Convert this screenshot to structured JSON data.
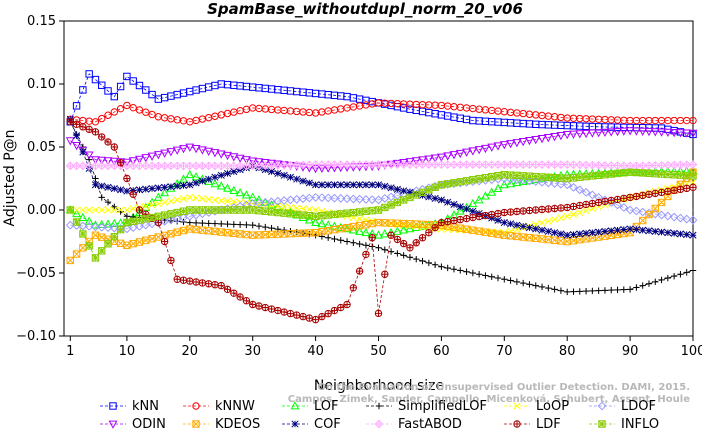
{
  "chart_data": {
    "type": "line",
    "title": "SpamBase_withoutdupl_norm_20_v06",
    "xlabel": "Neighborhood size",
    "ylabel": "Adjusted P@n",
    "xlim": [
      0,
      100
    ],
    "ylim": [
      -0.1,
      0.15
    ],
    "xticks": [
      1,
      10,
      20,
      30,
      40,
      50,
      60,
      70,
      80,
      90,
      100
    ],
    "yticks": [
      -0.1,
      -0.05,
      0.0,
      0.05,
      0.1,
      0.15
    ],
    "ytick_labels": [
      "−0.10",
      "−0.05",
      "0.00",
      "0.05",
      "0.10",
      "0.15"
    ],
    "watermark": [
      "Campos, Zimek, Sander, Campello, Micenková, Schubert, Assent, Houle",
      "On the Evaluation of Unsupervised Outlier Detection. DAMI, 2015."
    ],
    "legend_position": "bottom",
    "series": [
      {
        "name": "kNN",
        "color": "#0000ff",
        "marker": "square",
        "points": [
          [
            1,
            0.07
          ],
          [
            4,
            0.108
          ],
          [
            8,
            0.09
          ],
          [
            10,
            0.106
          ],
          [
            15,
            0.088
          ],
          [
            25,
            0.1
          ],
          [
            35,
            0.095
          ],
          [
            45,
            0.09
          ],
          [
            55,
            0.08
          ],
          [
            65,
            0.071
          ],
          [
            75,
            0.068
          ],
          [
            85,
            0.066
          ],
          [
            95,
            0.065
          ],
          [
            100,
            0.06
          ]
        ]
      },
      {
        "name": "kNNW",
        "color": "#ff0000",
        "marker": "circle",
        "points": [
          [
            1,
            0.072
          ],
          [
            5,
            0.07
          ],
          [
            10,
            0.083
          ],
          [
            15,
            0.074
          ],
          [
            20,
            0.07
          ],
          [
            30,
            0.081
          ],
          [
            40,
            0.077
          ],
          [
            50,
            0.085
          ],
          [
            60,
            0.083
          ],
          [
            70,
            0.078
          ],
          [
            80,
            0.073
          ],
          [
            90,
            0.071
          ],
          [
            100,
            0.071
          ]
        ]
      },
      {
        "name": "LOF",
        "color": "#00ff00",
        "marker": "triangle-up",
        "points": [
          [
            1,
            0.0
          ],
          [
            5,
            -0.012
          ],
          [
            10,
            -0.01
          ],
          [
            15,
            0.01
          ],
          [
            20,
            0.028
          ],
          [
            30,
            0.01
          ],
          [
            40,
            -0.01
          ],
          [
            50,
            -0.02
          ],
          [
            60,
            -0.01
          ],
          [
            70,
            0.02
          ],
          [
            80,
            0.028
          ],
          [
            90,
            0.03
          ],
          [
            100,
            0.031
          ]
        ]
      },
      {
        "name": "SimplifiedLOF",
        "color": "#000000",
        "marker": "plus",
        "points": [
          [
            1,
            0.07
          ],
          [
            4,
            0.04
          ],
          [
            6,
            0.01
          ],
          [
            10,
            -0.005
          ],
          [
            20,
            -0.01
          ],
          [
            30,
            -0.012
          ],
          [
            40,
            -0.02
          ],
          [
            50,
            -0.03
          ],
          [
            60,
            -0.045
          ],
          [
            70,
            -0.055
          ],
          [
            80,
            -0.065
          ],
          [
            90,
            -0.063
          ],
          [
            100,
            -0.048
          ]
        ]
      },
      {
        "name": "LoOP",
        "color": "#ffff00",
        "marker": "x",
        "points": [
          [
            1,
            0.0
          ],
          [
            10,
            0.0
          ],
          [
            20,
            0.01
          ],
          [
            30,
            0.005
          ],
          [
            40,
            0.0
          ],
          [
            50,
            -0.01
          ],
          [
            60,
            -0.015
          ],
          [
            70,
            -0.018
          ],
          [
            80,
            -0.005
          ],
          [
            90,
            0.01
          ],
          [
            100,
            0.022
          ]
        ]
      },
      {
        "name": "LDOF",
        "color": "#9999ff",
        "marker": "diamond",
        "points": [
          [
            1,
            -0.012
          ],
          [
            10,
            -0.015
          ],
          [
            20,
            -0.005
          ],
          [
            30,
            0.005
          ],
          [
            40,
            0.01
          ],
          [
            50,
            0.008
          ],
          [
            60,
            0.02
          ],
          [
            70,
            0.025
          ],
          [
            80,
            0.02
          ],
          [
            90,
            0.0
          ],
          [
            100,
            -0.008
          ]
        ]
      },
      {
        "name": "ODIN",
        "color": "#aa00ff",
        "marker": "triangle-down",
        "points": [
          [
            1,
            0.055
          ],
          [
            5,
            0.04
          ],
          [
            10,
            0.038
          ],
          [
            20,
            0.05
          ],
          [
            30,
            0.039
          ],
          [
            40,
            0.033
          ],
          [
            50,
            0.035
          ],
          [
            60,
            0.042
          ],
          [
            70,
            0.052
          ],
          [
            80,
            0.06
          ],
          [
            90,
            0.063
          ],
          [
            100,
            0.061
          ]
        ]
      },
      {
        "name": "KDEOS",
        "color": "#ffaa00",
        "marker": "box-x",
        "points": [
          [
            1,
            -0.04
          ],
          [
            5,
            -0.02
          ],
          [
            10,
            -0.028
          ],
          [
            20,
            -0.015
          ],
          [
            30,
            -0.02
          ],
          [
            40,
            -0.018
          ],
          [
            50,
            -0.01
          ],
          [
            60,
            -0.012
          ],
          [
            70,
            -0.02
          ],
          [
            80,
            -0.025
          ],
          [
            90,
            -0.018
          ],
          [
            100,
            0.03
          ]
        ]
      },
      {
        "name": "COF",
        "color": "#000080",
        "marker": "asterisk",
        "points": [
          [
            1,
            0.072
          ],
          [
            5,
            0.02
          ],
          [
            10,
            0.015
          ],
          [
            20,
            0.02
          ],
          [
            30,
            0.035
          ],
          [
            40,
            0.02
          ],
          [
            50,
            0.02
          ],
          [
            60,
            0.008
          ],
          [
            70,
            -0.01
          ],
          [
            80,
            -0.02
          ],
          [
            90,
            -0.015
          ],
          [
            100,
            -0.02
          ]
        ]
      },
      {
        "name": "FastABOD",
        "color": "#ffaaff",
        "marker": "diamond-plus",
        "points": [
          [
            1,
            0.035
          ],
          [
            10,
            0.035
          ],
          [
            20,
            0.035
          ],
          [
            30,
            0.035
          ],
          [
            40,
            0.036
          ],
          [
            50,
            0.036
          ],
          [
            60,
            0.036
          ],
          [
            70,
            0.036
          ],
          [
            80,
            0.036
          ],
          [
            90,
            0.035
          ],
          [
            100,
            0.036
          ]
        ]
      },
      {
        "name": "LDF",
        "color": "#aa0000",
        "marker": "circle-plus",
        "points": [
          [
            1,
            0.07
          ],
          [
            5,
            0.062
          ],
          [
            8,
            0.05
          ],
          [
            12,
            0.0
          ],
          [
            15,
            -0.01
          ],
          [
            18,
            -0.055
          ],
          [
            25,
            -0.06
          ],
          [
            30,
            -0.075
          ],
          [
            40,
            -0.087
          ],
          [
            45,
            -0.075
          ],
          [
            49,
            -0.022
          ],
          [
            50,
            -0.082
          ],
          [
            52,
            -0.02
          ],
          [
            55,
            -0.03
          ],
          [
            60,
            -0.01
          ],
          [
            70,
            -0.002
          ],
          [
            80,
            0.002
          ],
          [
            90,
            0.01
          ],
          [
            100,
            0.018
          ]
        ]
      },
      {
        "name": "INFLO",
        "color": "#88cc00",
        "marker": "box-star",
        "points": [
          [
            1,
            0.0
          ],
          [
            5,
            -0.038
          ],
          [
            10,
            -0.01
          ],
          [
            20,
            0.0
          ],
          [
            30,
            0.0
          ],
          [
            40,
            -0.005
          ],
          [
            50,
            0.0
          ],
          [
            60,
            0.02
          ],
          [
            70,
            0.028
          ],
          [
            80,
            0.025
          ],
          [
            90,
            0.03
          ],
          [
            100,
            0.027
          ]
        ]
      }
    ]
  }
}
